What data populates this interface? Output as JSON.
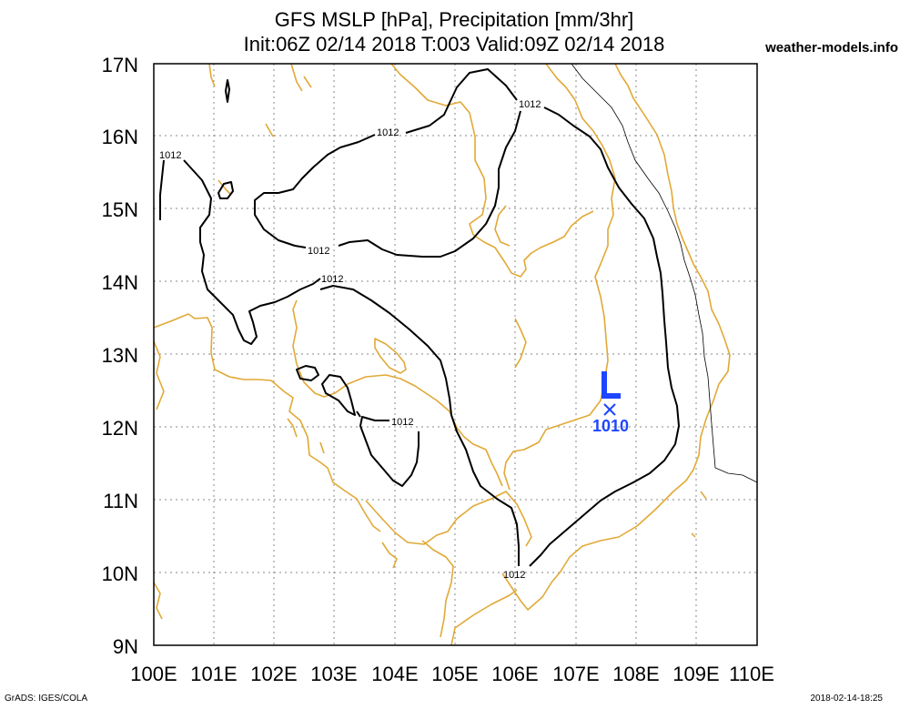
{
  "title": {
    "line1": "GFS MSLP [hPa], Precipitation [mm/3hr]",
    "line2": "Init:06Z 02/14 2018 T:003 Valid:09Z 02/14 2018"
  },
  "site": "weather-models.info",
  "footer": {
    "left": "GrADS: IGES/COLA",
    "right": "2018-02-14-18:25"
  },
  "map": {
    "lon_range": [
      100,
      110
    ],
    "lat_range": [
      9,
      17
    ],
    "lon_ticks": [
      "100E",
      "101E",
      "102E",
      "103E",
      "104E",
      "105E",
      "106E",
      "107E",
      "108E",
      "109E",
      "110E"
    ],
    "lat_ticks": [
      "9N",
      "10N",
      "11N",
      "12N",
      "13N",
      "14N",
      "15N",
      "16N",
      "17N"
    ],
    "grid": true,
    "colors": {
      "coast": "#e1a936",
      "isobar": "#000000",
      "low": "#1e46ff"
    },
    "isobar_labels": [
      "1012",
      "1012",
      "1012",
      "1012",
      "1012",
      "1012",
      "1012"
    ],
    "low_center": {
      "symbol": "L",
      "marker": "×",
      "value": "1010",
      "lon": 107.55,
      "lat": 12.25
    }
  }
}
